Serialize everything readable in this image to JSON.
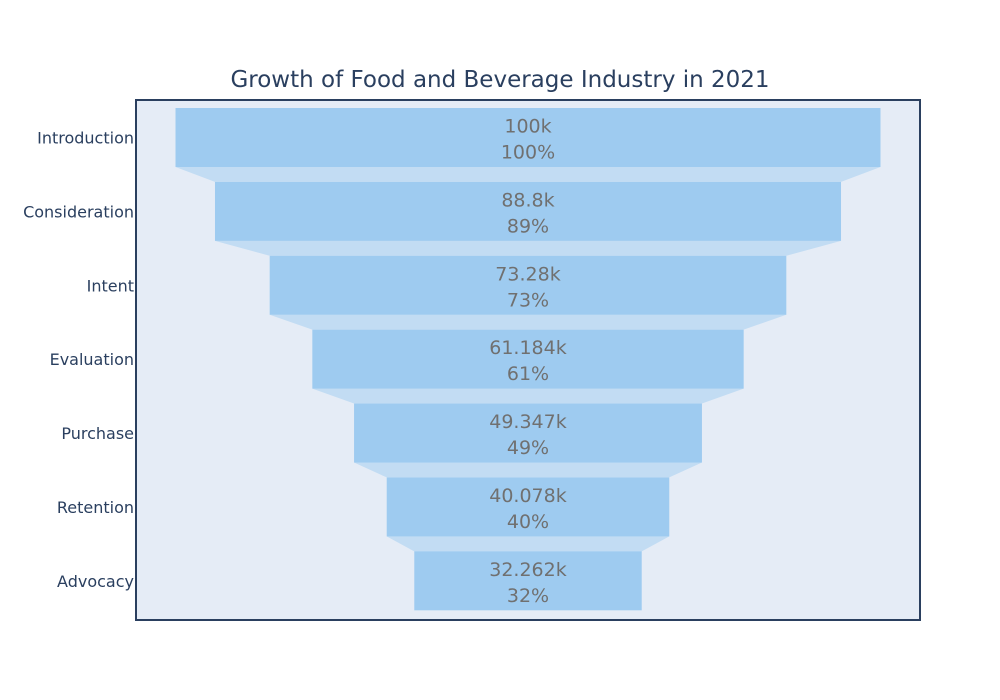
{
  "chart_data": {
    "type": "funnel",
    "title": "Growth of Food and Beverage Industry in 2021",
    "categories": [
      "Introduction",
      "Consideration",
      "Intent",
      "Evaluation",
      "Purchase",
      "Retention",
      "Advocacy"
    ],
    "values": [
      100000,
      88800,
      73280,
      61184,
      49347,
      40078,
      32262
    ],
    "value_labels": [
      "100k",
      "88.8k",
      "73.28k",
      "61.184k",
      "49.347k",
      "40.078k",
      "32.262k"
    ],
    "percent_labels": [
      "100%",
      "89%",
      "73%",
      "61%",
      "49%",
      "40%",
      "32%"
    ],
    "colors": {
      "bar": "#9ecbf0",
      "connector": "#c2dcf3",
      "plot_bg": "#e5ecf6",
      "plot_border": "#2a3f5f",
      "title": "#2a3f5f",
      "axis_label": "#2a3f5f",
      "value_text": "#707070"
    }
  }
}
